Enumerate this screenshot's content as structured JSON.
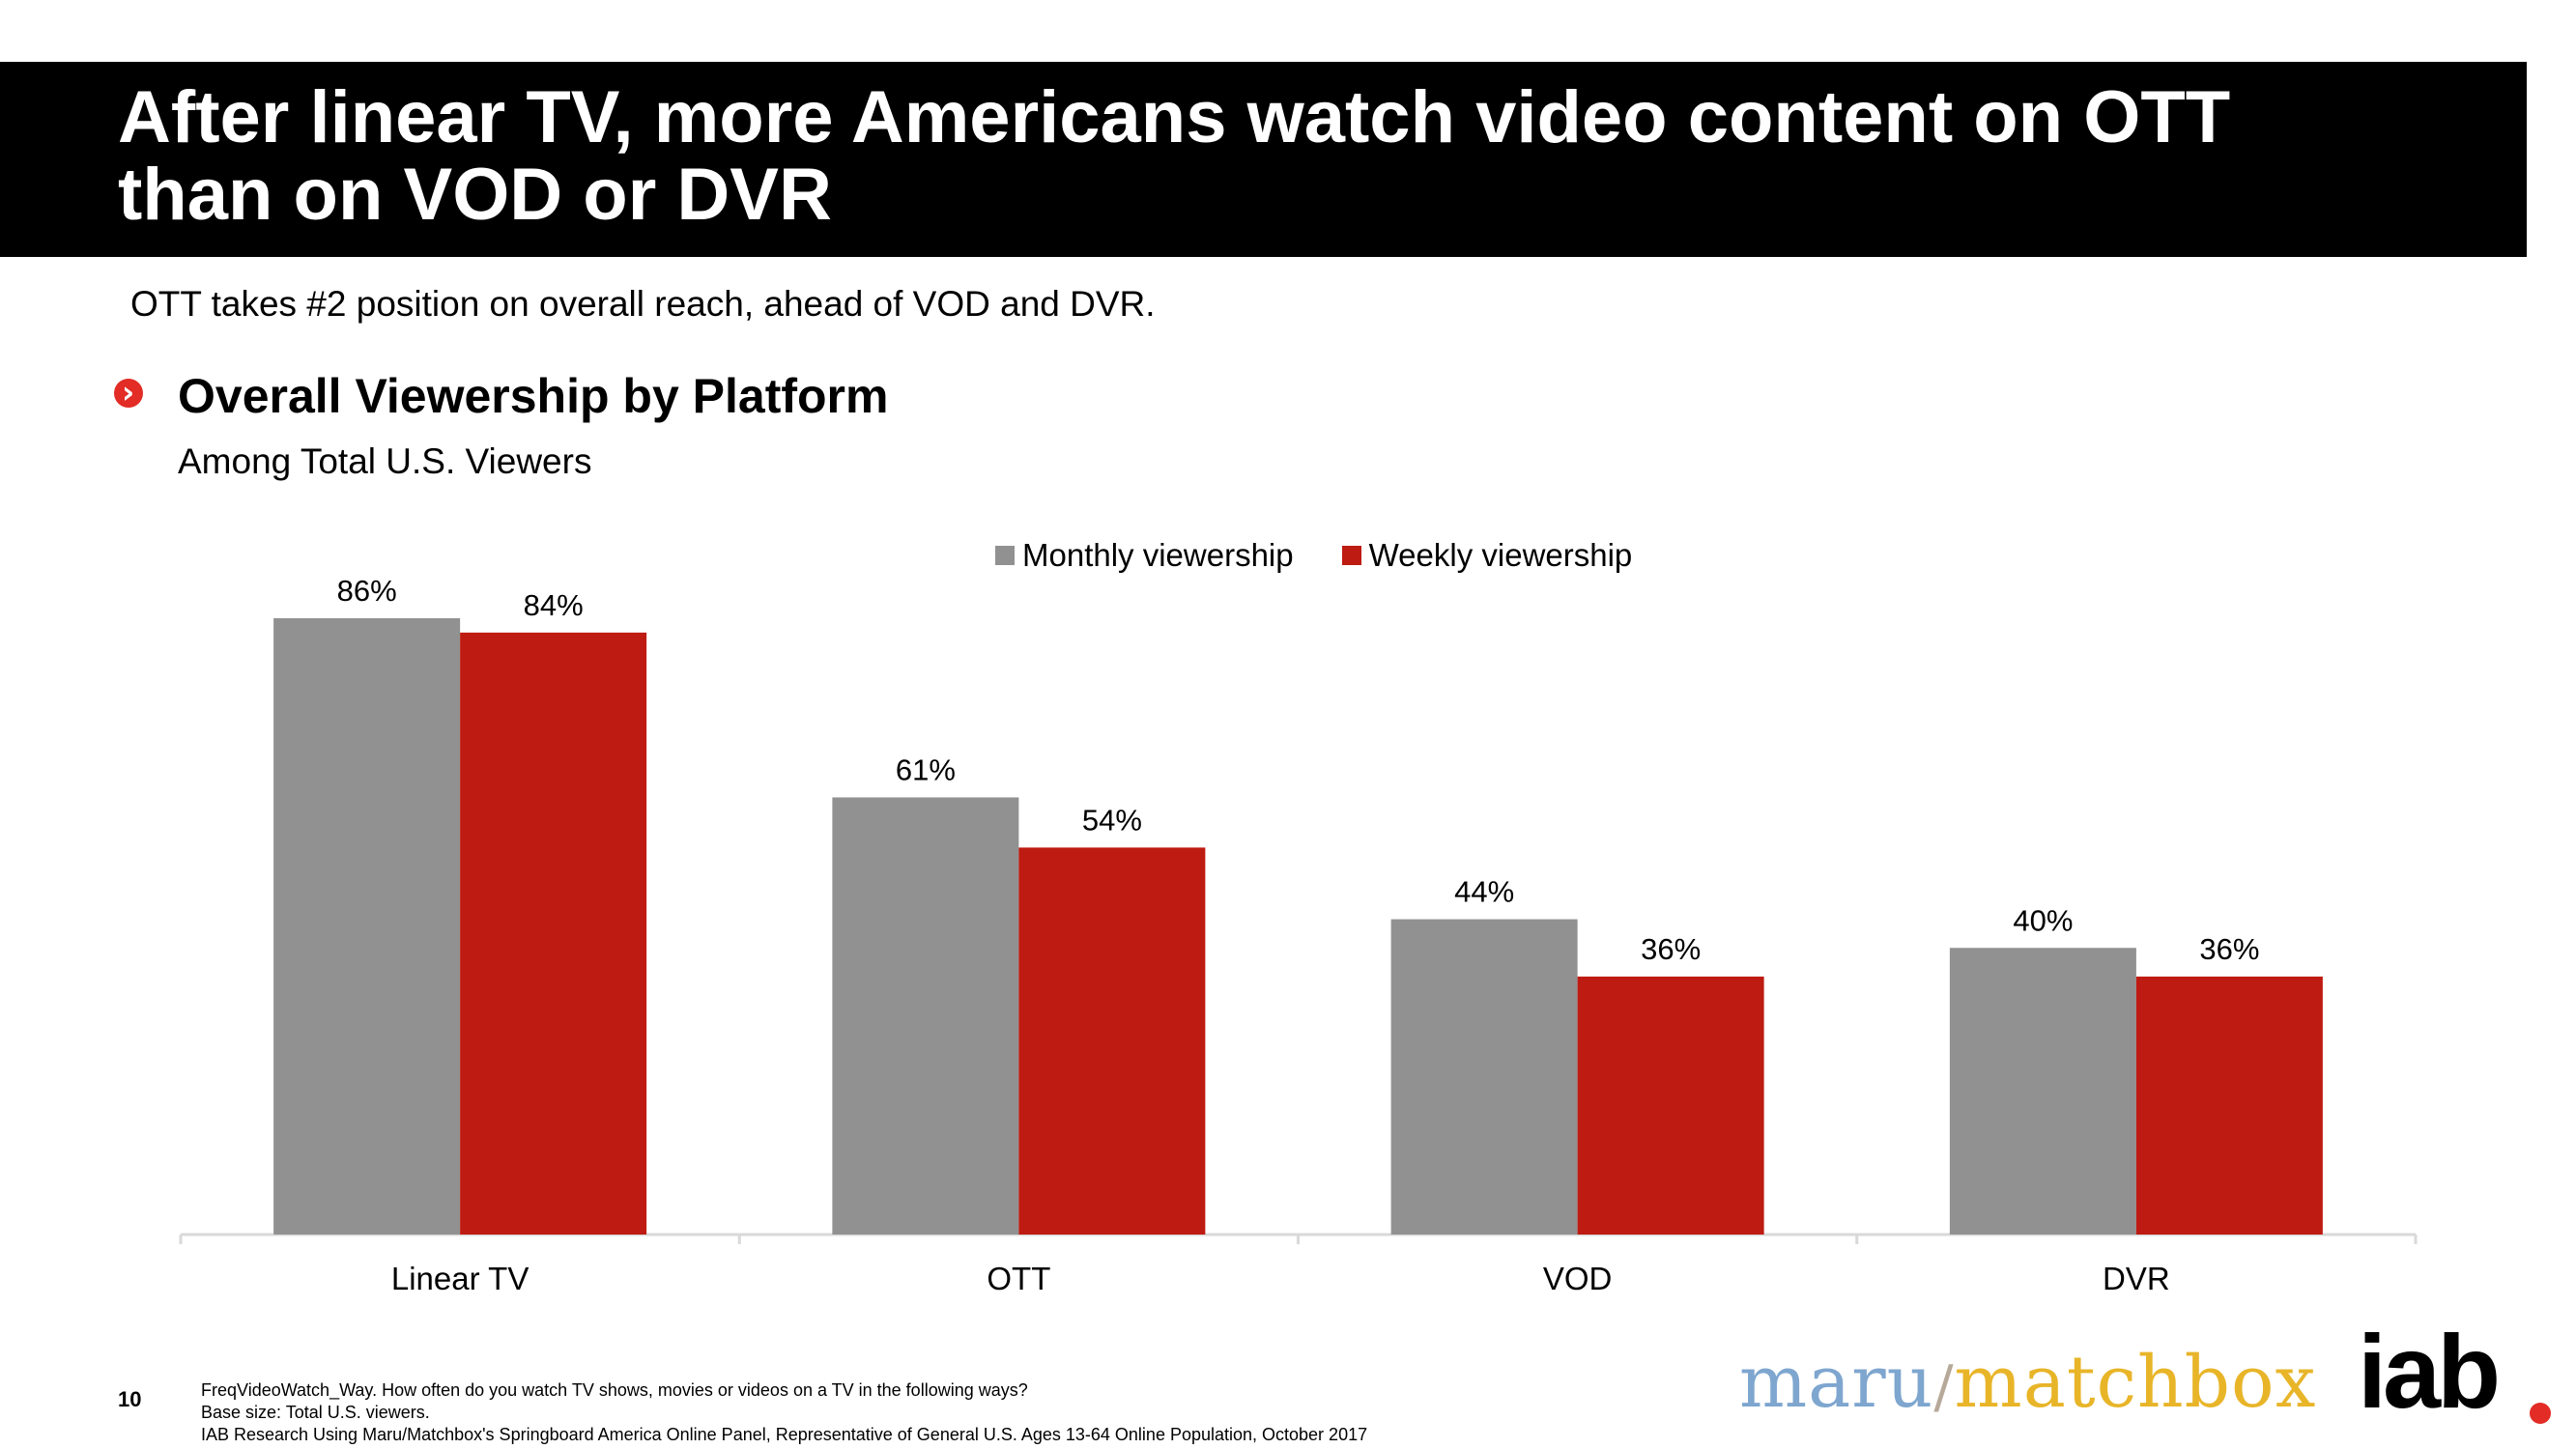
{
  "header": {
    "title_line1": "After linear TV, more Americans watch video content on OTT",
    "title_line2": "than on VOD or DVR"
  },
  "subtitle": "OTT takes #2 position on overall reach, ahead of VOD and DVR.",
  "section": {
    "marker_glyph": "›",
    "title": "Overall Viewership by Platform",
    "sub": "Among Total U.S. Viewers"
  },
  "colors": {
    "monthly": "#919191",
    "weekly": "#be1b12",
    "axis": "#d9d9d9"
  },
  "chart_data": {
    "type": "bar",
    "title": "Overall Viewership by Platform",
    "categories": [
      "Linear TV",
      "OTT",
      "VOD",
      "DVR"
    ],
    "series": [
      {
        "name": "Monthly viewership",
        "values": [
          86,
          61,
          44,
          40
        ]
      },
      {
        "name": "Weekly viewership",
        "values": [
          84,
          54,
          36,
          36
        ]
      }
    ],
    "value_suffix": "%",
    "ylim": [
      0,
      100
    ],
    "grid": false,
    "legend_position": "top-center"
  },
  "footer": {
    "page_number": "10",
    "notes": [
      "FreqVideoWatch_Way. How often do you watch TV shows, movies or videos on a TV in the following ways?",
      "Base size: Total U.S. viewers.",
      "IAB Research Using Maru/Matchbox's Springboard America Online Panel, Representative of General U.S. Ages 13-64 Online Population, October 2017"
    ]
  },
  "logos": {
    "maru": "maru",
    "slash": "/",
    "matchbox": "matchbox",
    "iab": "iab"
  }
}
